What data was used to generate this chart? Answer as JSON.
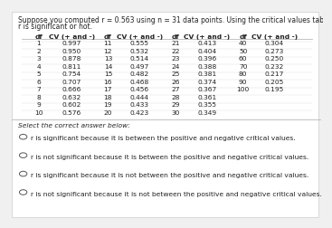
{
  "title_line1": "Suppose you computed r = 0.563 using n = 31 data points. Using the critical values table below, determine if the value of",
  "title_line2": "r is significant or not.",
  "table": {
    "col1_df": [
      1,
      2,
      3,
      4,
      5,
      6,
      7,
      8,
      9,
      10
    ],
    "col1_cv": [
      "0.997",
      "0.950",
      "0.878",
      "0.811",
      "0.754",
      "0.707",
      "0.666",
      "0.632",
      "0.602",
      "0.576"
    ],
    "col2_df": [
      11,
      12,
      13,
      14,
      15,
      16,
      17,
      18,
      19,
      20
    ],
    "col2_cv": [
      "0.555",
      "0.532",
      "0.514",
      "0.497",
      "0.482",
      "0.468",
      "0.456",
      "0.444",
      "0.433",
      "0.423"
    ],
    "col3_df": [
      21,
      22,
      23,
      24,
      25,
      26,
      27,
      28,
      29,
      30
    ],
    "col3_cv": [
      "0.413",
      "0.404",
      "0.396",
      "0.388",
      "0.381",
      "0.374",
      "0.367",
      "0.361",
      "0.355",
      "0.349"
    ],
    "col4_df": [
      40,
      50,
      60,
      70,
      80,
      90,
      100
    ],
    "col4_cv": [
      "0.304",
      "0.273",
      "0.250",
      "0.232",
      "0.217",
      "0.205",
      "0.195"
    ]
  },
  "select_text": "Select the correct answer below:",
  "options": [
    "r is significant because it is between the positive and negative critical values.",
    "r is not significant because it is between the positive and negative critical values.",
    "r is significant because it is not between the positive and negative critical values.",
    "r is not significant because it is not between the positive and negative critical values."
  ],
  "bg_color": "#f0f0f0",
  "text_color": "#222222",
  "title_fontsize": 5.5,
  "table_fontsize": 5.4,
  "option_fontsize": 5.4
}
